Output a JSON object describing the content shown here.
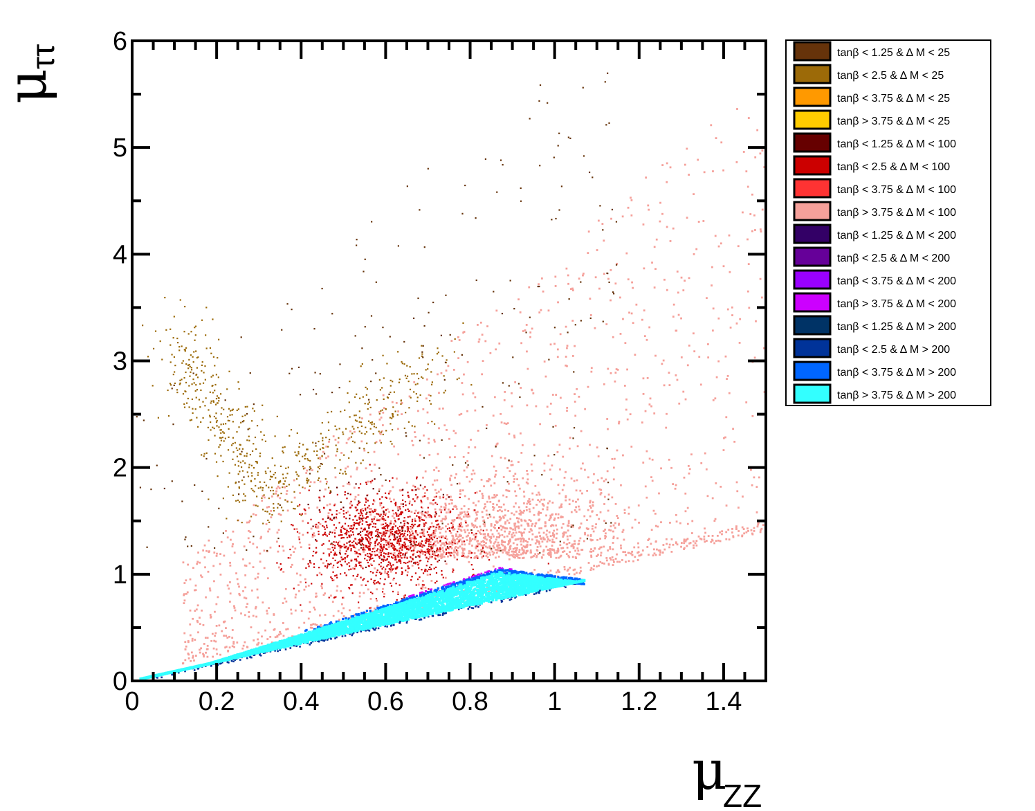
{
  "chart_data": {
    "type": "scatter",
    "xlabel": {
      "main": "μ",
      "sub": "ZZ"
    },
    "ylabel": {
      "main": "μ",
      "sub": "ττ"
    },
    "xlim": [
      0,
      1.5
    ],
    "ylim": [
      0,
      6
    ],
    "x_ticks": [
      "0",
      "0.2",
      "0.4",
      "0.6",
      "0.8",
      "1",
      "1.2",
      "1.4"
    ],
    "x_tick_values": [
      0,
      0.2,
      0.4,
      0.6,
      0.8,
      1.0,
      1.2,
      1.4
    ],
    "y_ticks": [
      "0",
      "1",
      "2",
      "3",
      "4",
      "5",
      "6"
    ],
    "y_tick_values": [
      0,
      1,
      2,
      3,
      4,
      5,
      6
    ],
    "grid": false,
    "legend_position": "right",
    "legend": [
      {
        "label": "tanβ < 1.25 & Δ M < 25",
        "color": "#66330a"
      },
      {
        "label": "tanβ < 2.5 & Δ M < 25",
        "color": "#9c6a08"
      },
      {
        "label": "tanβ < 3.75 & Δ M < 25",
        "color": "#ff9900"
      },
      {
        "label": "tanβ > 3.75 & Δ M < 25",
        "color": "#ffcc00"
      },
      {
        "label": "tanβ < 1.25 & Δ M < 100",
        "color": "#660000"
      },
      {
        "label": "tanβ < 2.5 & Δ M < 100",
        "color": "#cc0000"
      },
      {
        "label": "tanβ < 3.75 & Δ M < 100",
        "color": "#ff3333"
      },
      {
        "label": "tanβ > 3.75 & Δ M < 100",
        "color": "#f5a09a"
      },
      {
        "label": "tanβ < 1.25 & Δ M < 200",
        "color": "#330066"
      },
      {
        "label": "tanβ < 2.5 & Δ M < 200",
        "color": "#660099"
      },
      {
        "label": "tanβ < 3.75 & Δ M < 200",
        "color": "#9900ff"
      },
      {
        "label": "tanβ > 3.75 & Δ M < 200",
        "color": "#cc00ff"
      },
      {
        "label": "tanβ < 1.25 & Δ M > 200",
        "color": "#003366"
      },
      {
        "label": "tanβ < 2.5 & Δ M > 200",
        "color": "#003399"
      },
      {
        "label": "tanβ < 3.75 & Δ M > 200",
        "color": "#0066ff"
      },
      {
        "label": "tanβ > 3.75 & Δ M > 200",
        "color": "#33ffff"
      }
    ],
    "regions": [
      {
        "series": "tanβ > 3.75 & Δ M < 100",
        "x_range": [
          0.15,
          1.5
        ],
        "y_range": [
          0.1,
          5.4
        ],
        "density": "sparse, densest near (0.85, 1.15)"
      },
      {
        "series": "tanβ < 2.5 & Δ M < 100",
        "x_center": 0.6,
        "y_center": 1.3,
        "density": "dense cluster"
      },
      {
        "series": "tanβ < 2.5 & Δ M < 25",
        "x_range": [
          0.1,
          0.75
        ],
        "y_range": [
          1.6,
          3.3
        ],
        "density": "band from (0.1,3.3) to (0.3,1.8) to (0.7,3.0)"
      },
      {
        "series": "tanβ < 1.25 & Δ M < 25",
        "x_range": [
          0.0,
          1.15
        ],
        "y_range": [
          1.0,
          5.7
        ],
        "density": "very sparse"
      },
      {
        "series": "tanβ > 3.75 & Δ M > 200",
        "x_range": [
          0,
          1.07
        ],
        "y_range": [
          0,
          1.05
        ],
        "density": "dense wedge along y ≈ 0.9x"
      },
      {
        "series": "tanβ < 3.75 & Δ M > 200",
        "x_range": [
          0.8,
          1.07
        ],
        "y_range": [
          0.93,
          1.07
        ],
        "density": "upper edge of wedge"
      }
    ]
  }
}
